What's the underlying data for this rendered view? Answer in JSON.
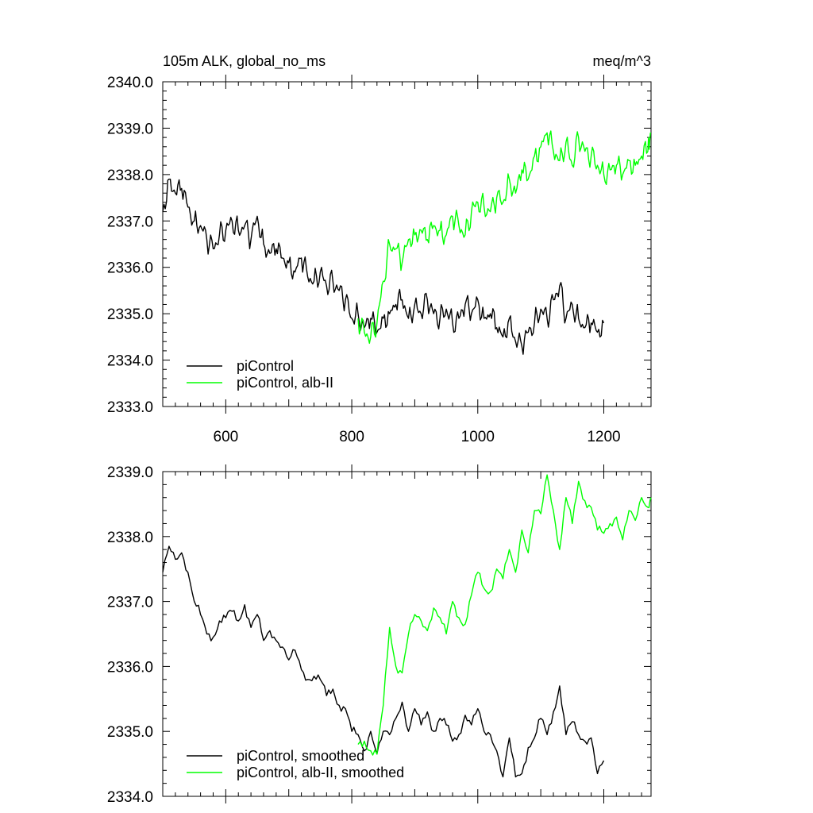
{
  "chart_data": [
    {
      "type": "line",
      "title_left": "105m ALK, global_no_ms",
      "title_right": "meq/m^3",
      "xlabel": "",
      "ylabel": "",
      "xlim": [
        500,
        1275
      ],
      "ylim": [
        2333.0,
        2340.0
      ],
      "xticks": [
        600,
        800,
        1000,
        1200
      ],
      "xtick_labels": [
        "600",
        "800",
        "1000",
        "1200"
      ],
      "yticks": [
        2333.0,
        2334.0,
        2335.0,
        2336.0,
        2337.0,
        2338.0,
        2339.0,
        2340.0
      ],
      "ytick_labels": [
        "2333.0",
        "2334.0",
        "2335.0",
        "2336.0",
        "2337.0",
        "2338.0",
        "2339.0",
        "2340.0"
      ],
      "grid": false,
      "legend": "bottom-left",
      "series": [
        {
          "name": "piControl",
          "color": "#000000",
          "x": [
            500,
            510,
            520,
            530,
            540,
            550,
            560,
            570,
            580,
            590,
            600,
            610,
            620,
            630,
            640,
            650,
            660,
            670,
            680,
            690,
            700,
            710,
            720,
            730,
            740,
            750,
            760,
            770,
            780,
            790,
            800,
            810,
            820,
            830,
            840,
            850,
            860,
            870,
            880,
            890,
            900,
            910,
            920,
            930,
            940,
            950,
            960,
            970,
            980,
            990,
            1000,
            1010,
            1020,
            1030,
            1040,
            1050,
            1060,
            1070,
            1080,
            1090,
            1100,
            1110,
            1120,
            1130,
            1140,
            1150,
            1160,
            1170,
            1180,
            1190,
            1200
          ],
          "y": [
            2337.2,
            2337.9,
            2337.6,
            2337.7,
            2337.3,
            2337.0,
            2336.9,
            2336.6,
            2336.4,
            2336.7,
            2336.8,
            2337.0,
            2336.8,
            2336.9,
            2336.6,
            2337.1,
            2336.5,
            2336.3,
            2336.4,
            2336.2,
            2336.1,
            2335.9,
            2336.2,
            2335.8,
            2335.7,
            2335.9,
            2335.6,
            2335.7,
            2335.5,
            2335.3,
            2334.9,
            2335.0,
            2334.7,
            2334.9,
            2334.6,
            2334.9,
            2335.0,
            2335.2,
            2335.3,
            2334.9,
            2335.2,
            2335.0,
            2335.3,
            2335.0,
            2334.9,
            2335.1,
            2334.8,
            2334.9,
            2335.2,
            2335.0,
            2335.3,
            2334.9,
            2335.0,
            2334.7,
            2334.5,
            2334.9,
            2334.4,
            2334.3,
            2334.6,
            2334.8,
            2335.1,
            2334.9,
            2335.3,
            2335.6,
            2334.9,
            2335.2,
            2334.9,
            2334.7,
            2334.8,
            2334.6,
            2334.8
          ]
        },
        {
          "name": "piControl, alb-II",
          "color": "#00ff00",
          "x": [
            810,
            820,
            830,
            840,
            850,
            860,
            870,
            880,
            890,
            900,
            910,
            920,
            930,
            940,
            950,
            960,
            970,
            980,
            990,
            1000,
            1010,
            1020,
            1030,
            1040,
            1050,
            1060,
            1070,
            1080,
            1090,
            1100,
            1110,
            1120,
            1130,
            1140,
            1150,
            1160,
            1170,
            1180,
            1190,
            1200,
            1210,
            1220,
            1230,
            1240,
            1250,
            1260,
            1270,
            1275
          ],
          "y": [
            2334.9,
            2334.6,
            2334.5,
            2334.8,
            2335.7,
            2336.5,
            2336.4,
            2336.1,
            2336.6,
            2336.7,
            2336.8,
            2336.6,
            2336.9,
            2336.8,
            2336.7,
            2337.1,
            2336.9,
            2336.7,
            2337.2,
            2337.4,
            2337.3,
            2337.2,
            2337.5,
            2337.4,
            2337.9,
            2337.6,
            2338.1,
            2337.9,
            2338.4,
            2338.6,
            2338.9,
            2338.5,
            2338.3,
            2338.7,
            2338.2,
            2338.8,
            2338.5,
            2338.4,
            2338.2,
            2338.0,
            2338.1,
            2338.2,
            2338.0,
            2338.3,
            2338.2,
            2338.4,
            2338.5,
            2338.9
          ]
        }
      ]
    },
    {
      "type": "line",
      "xlabel": "",
      "ylabel": "",
      "xlim": [
        500,
        1275
      ],
      "ylim": [
        2334.0,
        2339.0
      ],
      "xticks": [
        600,
        800,
        1000,
        1200
      ],
      "yticks": [
        2334.0,
        2335.0,
        2336.0,
        2337.0,
        2338.0,
        2339.0
      ],
      "ytick_labels": [
        "2334.0",
        "2335.0",
        "2336.0",
        "2337.0",
        "2338.0",
        "2339.0"
      ],
      "grid": false,
      "legend": "bottom-left",
      "series": [
        {
          "name": "piControl, smoothed",
          "color": "#000000",
          "x": [
            500,
            510,
            520,
            530,
            540,
            550,
            560,
            570,
            580,
            590,
            600,
            610,
            620,
            630,
            640,
            650,
            660,
            670,
            680,
            690,
            700,
            710,
            720,
            730,
            740,
            750,
            760,
            770,
            780,
            790,
            800,
            810,
            820,
            830,
            840,
            850,
            860,
            870,
            880,
            890,
            900,
            910,
            920,
            930,
            940,
            950,
            960,
            970,
            980,
            990,
            1000,
            1010,
            1020,
            1030,
            1040,
            1050,
            1060,
            1070,
            1080,
            1090,
            1100,
            1110,
            1120,
            1130,
            1140,
            1150,
            1160,
            1170,
            1180,
            1190,
            1200
          ],
          "y": [
            2337.45,
            2337.85,
            2337.65,
            2337.75,
            2337.45,
            2337.0,
            2336.8,
            2336.5,
            2336.45,
            2336.7,
            2336.75,
            2336.85,
            2336.7,
            2336.95,
            2336.6,
            2336.8,
            2336.4,
            2336.55,
            2336.4,
            2336.3,
            2336.1,
            2336.25,
            2335.95,
            2335.8,
            2335.85,
            2335.8,
            2335.55,
            2335.65,
            2335.4,
            2335.35,
            2335.0,
            2334.95,
            2334.7,
            2335.0,
            2334.65,
            2335.0,
            2334.95,
            2335.2,
            2335.45,
            2335.0,
            2335.35,
            2335.1,
            2335.3,
            2335.0,
            2335.2,
            2335.1,
            2334.85,
            2334.95,
            2335.25,
            2335.1,
            2335.35,
            2335.0,
            2334.95,
            2334.7,
            2334.3,
            2334.9,
            2334.3,
            2334.35,
            2334.75,
            2334.9,
            2335.2,
            2334.95,
            2335.3,
            2335.7,
            2334.95,
            2335.15,
            2334.95,
            2334.85,
            2334.9,
            2334.35,
            2334.55
          ]
        },
        {
          "name": "piControl, alb-II, smoothed",
          "color": "#00ff00",
          "x": [
            810,
            820,
            830,
            840,
            850,
            860,
            870,
            880,
            890,
            900,
            910,
            920,
            930,
            940,
            950,
            960,
            970,
            980,
            990,
            1000,
            1010,
            1020,
            1030,
            1040,
            1050,
            1060,
            1070,
            1080,
            1090,
            1100,
            1110,
            1120,
            1130,
            1140,
            1150,
            1160,
            1170,
            1180,
            1190,
            1200,
            1210,
            1220,
            1230,
            1240,
            1250,
            1260,
            1270,
            1275
          ],
          "y": [
            2334.8,
            2334.85,
            2334.7,
            2334.65,
            2335.4,
            2336.6,
            2336.0,
            2335.9,
            2336.5,
            2336.8,
            2336.7,
            2336.55,
            2336.9,
            2336.75,
            2336.5,
            2337.0,
            2336.75,
            2336.65,
            2337.1,
            2337.45,
            2337.2,
            2337.15,
            2337.5,
            2337.35,
            2337.8,
            2337.45,
            2338.1,
            2337.75,
            2338.4,
            2338.35,
            2338.95,
            2338.4,
            2337.8,
            2338.6,
            2338.2,
            2338.85,
            2338.55,
            2338.45,
            2338.1,
            2338.05,
            2338.2,
            2338.3,
            2337.95,
            2338.4,
            2338.25,
            2338.6,
            2338.45,
            2338.6
          ]
        }
      ]
    }
  ]
}
